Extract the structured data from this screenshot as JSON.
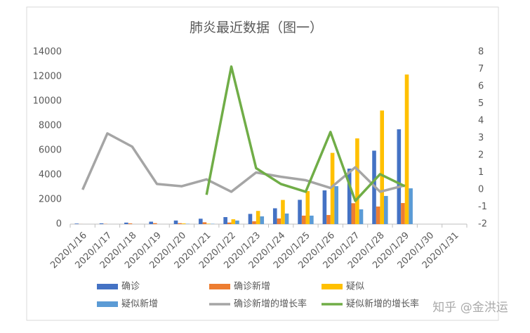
{
  "chart_data": {
    "type": "bar",
    "title": "肺炎最近数据（图一）",
    "categories": [
      "2020/1/16",
      "2020/1/17",
      "2020/1/18",
      "2020/1/19",
      "2020/1/20",
      "2020/1/21",
      "2020/1/22",
      "2020/1/23",
      "2020/1/24",
      "2020/1/25",
      "2020/1/26",
      "2020/1/27",
      "2020/1/28",
      "2020/1/29",
      "2020/1/30",
      "2020/1/31"
    ],
    "series": [
      {
        "name": "确诊",
        "type": "bar",
        "color": "#4472c4",
        "values": [
          45,
          62,
          121,
          198,
          291,
          440,
          571,
          830,
          1287,
          1975,
          2744,
          4515,
          5974,
          7711,
          null,
          null
        ]
      },
      {
        "name": "确诊新增",
        "type": "bar",
        "color": "#ed7d31",
        "values": [
          4,
          17,
          59,
          77,
          77,
          149,
          130,
          230,
          460,
          690,
          740,
          1700,
          1430,
          1714,
          null,
          null
        ]
      },
      {
        "name": "疑似",
        "type": "bar",
        "color": "#ffc000",
        "values": [
          0,
          0,
          0,
          0,
          54,
          37,
          393,
          1072,
          1965,
          2684,
          5794,
          6973,
          9239,
          12167,
          null,
          null
        ]
      },
      {
        "name": "疑似新增",
        "type": "bar",
        "color": "#5b9bd5",
        "values": [
          0,
          0,
          0,
          0,
          27,
          26,
          290,
          630,
          860,
          690,
          3086,
          1200,
          2290,
          2910,
          null,
          null
        ]
      },
      {
        "name": "确诊新增的增长率",
        "type": "line",
        "axis": "y2",
        "color": "#a5a5a5",
        "values": [
          0,
          3.27,
          2.5,
          0.33,
          0.2,
          0.6,
          -0.12,
          1.0,
          0.75,
          0.55,
          0.1,
          1.3,
          -0.12,
          0.25,
          null,
          null
        ]
      },
      {
        "name": "疑似新增的增长率",
        "type": "line",
        "axis": "y2",
        "color": "#70ad47",
        "values": [
          null,
          null,
          null,
          null,
          null,
          -0.3,
          7.15,
          1.25,
          0.33,
          -0.12,
          3.35,
          -0.65,
          0.9,
          0.2,
          null,
          null
        ]
      }
    ],
    "ylim": [
      0,
      14000
    ],
    "yticks": [
      0,
      2000,
      4000,
      6000,
      8000,
      10000,
      12000,
      14000
    ],
    "y2lim": [
      -2,
      8
    ],
    "y2ticks": [
      -2,
      -1,
      0,
      1,
      2,
      3,
      4,
      5,
      6,
      7,
      8
    ],
    "grid": false,
    "legend": "bottom",
    "watermark": "知乎 @金洪运"
  }
}
